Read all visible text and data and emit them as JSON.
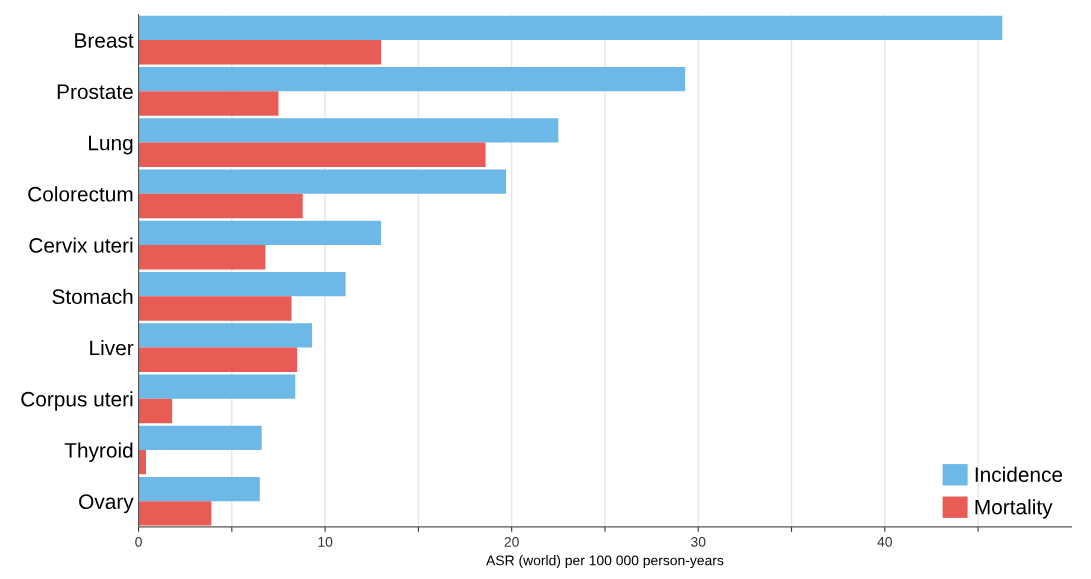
{
  "chart_data": {
    "type": "bar",
    "orientation": "horizontal",
    "xlabel": "ASR (world) per 100 000 person-years",
    "categories": [
      "Breast",
      "Prostate",
      "Lung",
      "Colorectum",
      "Cervix uteri",
      "Stomach",
      "Liver",
      "Corpus uteri",
      "Thyroid",
      "Ovary"
    ],
    "series": [
      {
        "name": "Incidence",
        "color": "#6cb8e6",
        "values": [
          46.3,
          29.3,
          22.5,
          19.7,
          13.0,
          11.1,
          9.3,
          8.4,
          6.6,
          6.5
        ]
      },
      {
        "name": "Mortality",
        "color": "#e85c55",
        "values": [
          13.0,
          7.5,
          18.6,
          8.8,
          6.8,
          8.2,
          8.5,
          1.8,
          0.4,
          3.9
        ]
      }
    ],
    "xlim": [
      0,
      50
    ],
    "xticks": [
      0,
      {
        "value": 5,
        "label": null
      },
      10,
      {
        "value": 15,
        "label": null
      },
      20,
      {
        "value": 25,
        "label": null
      },
      30,
      {
        "value": 35,
        "label": null
      },
      40,
      {
        "value": 45,
        "label": null
      }
    ],
    "grid": "x",
    "legend": "bottom right"
  }
}
